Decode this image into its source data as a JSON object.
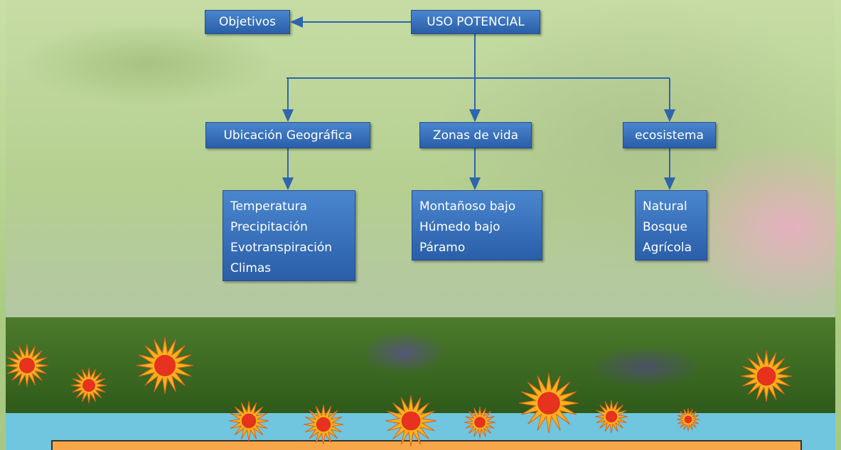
{
  "root": {
    "label": "USO POTENCIAL"
  },
  "goal": {
    "label": "Objetivos"
  },
  "branches": [
    {
      "label": "Ubicación Geográfica",
      "items": [
        "Temperatura",
        "Precipitación",
        "Evotranspiración",
        "Climas"
      ]
    },
    {
      "label": "Zonas de vida",
      "items": [
        "Montañoso bajo",
        "Húmedo bajo",
        "Páramo"
      ]
    },
    {
      "label": "ecosistema",
      "items": [
        "Natural",
        "Bosque",
        "Agrícola"
      ]
    }
  ]
}
